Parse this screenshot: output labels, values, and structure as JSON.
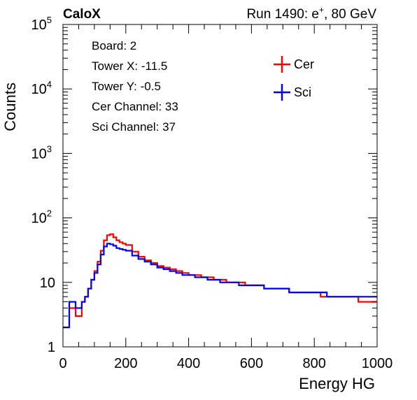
{
  "header": {
    "left": "CaloX",
    "right_prefix": "Run 1490: e",
    "right_sup": "+",
    "right_suffix": ", 80 GeV"
  },
  "info_lines": [
    "Board: 2",
    "Tower X: -11.5",
    "Tower Y: -0.5",
    "Cer Channel: 33",
    "Sci Channel: 37"
  ],
  "chart_data": {
    "type": "line",
    "title": "",
    "xlabel": "Energy HG",
    "ylabel": "Counts",
    "xlim": [
      0,
      1000
    ],
    "ylim": [
      1,
      100000
    ],
    "yscale": "log",
    "grid": false,
    "x_ticks": [
      0,
      200,
      400,
      600,
      800,
      1000
    ],
    "x_tick_labels": [
      "0",
      "200",
      "400",
      "600",
      "800",
      "1000"
    ],
    "y_ticks": [
      1,
      10,
      100,
      1000,
      10000,
      100000
    ],
    "y_tick_labels": [
      {
        "base": "1",
        "exp": ""
      },
      {
        "base": "10",
        "exp": ""
      },
      {
        "base": "10",
        "exp": "2"
      },
      {
        "base": "10",
        "exp": "3"
      },
      {
        "base": "10",
        "exp": "4"
      },
      {
        "base": "10",
        "exp": "5"
      }
    ],
    "legend_position": "top-right",
    "series": [
      {
        "name": "Cer",
        "color": "#ff0000",
        "x": [
          0,
          20,
          40,
          60,
          70,
          80,
          90,
          100,
          110,
          120,
          130,
          140,
          150,
          160,
          170,
          180,
          190,
          200,
          220,
          240,
          260,
          280,
          300,
          320,
          340,
          360,
          380,
          400,
          420,
          440,
          460,
          480,
          500,
          520,
          540,
          560,
          580,
          600,
          620,
          640,
          660,
          680,
          700,
          720,
          740,
          760,
          780,
          800,
          820,
          840,
          860,
          880,
          900,
          920,
          940,
          960,
          980,
          1000
        ],
        "values": [
          2,
          4,
          3,
          5,
          6,
          8,
          11,
          15,
          21,
          31,
          45,
          54,
          56,
          50,
          45,
          42,
          40,
          38,
          30,
          25,
          22,
          20,
          18,
          17,
          16,
          15,
          14,
          13,
          13,
          12,
          12,
          11,
          11,
          10,
          10,
          10,
          9,
          9,
          9,
          8,
          8,
          8,
          8,
          7,
          7,
          7,
          7,
          7,
          6,
          6,
          6,
          6,
          6,
          6,
          5,
          5,
          5,
          5
        ]
      },
      {
        "name": "Sci",
        "color": "#0000ff",
        "x": [
          0,
          20,
          40,
          60,
          70,
          80,
          90,
          100,
          110,
          120,
          130,
          140,
          150,
          160,
          170,
          180,
          190,
          200,
          220,
          240,
          260,
          280,
          300,
          320,
          340,
          360,
          380,
          400,
          420,
          440,
          460,
          480,
          500,
          520,
          540,
          560,
          580,
          600,
          620,
          640,
          660,
          680,
          700,
          720,
          740,
          760,
          780,
          800,
          820,
          840,
          860,
          880,
          900,
          920,
          940,
          960,
          980,
          1000
        ],
        "values": [
          2,
          5,
          4,
          5,
          6,
          8,
          11,
          14,
          19,
          27,
          36,
          40,
          39,
          37,
          34,
          33,
          32,
          31,
          26,
          23,
          21,
          19,
          17,
          16,
          15,
          14,
          13,
          13,
          12,
          12,
          11,
          11,
          10,
          10,
          10,
          9,
          9,
          9,
          9,
          8,
          8,
          8,
          8,
          7,
          7,
          7,
          7,
          7,
          7,
          6,
          6,
          6,
          6,
          6,
          6,
          6,
          6,
          6
        ]
      }
    ]
  }
}
